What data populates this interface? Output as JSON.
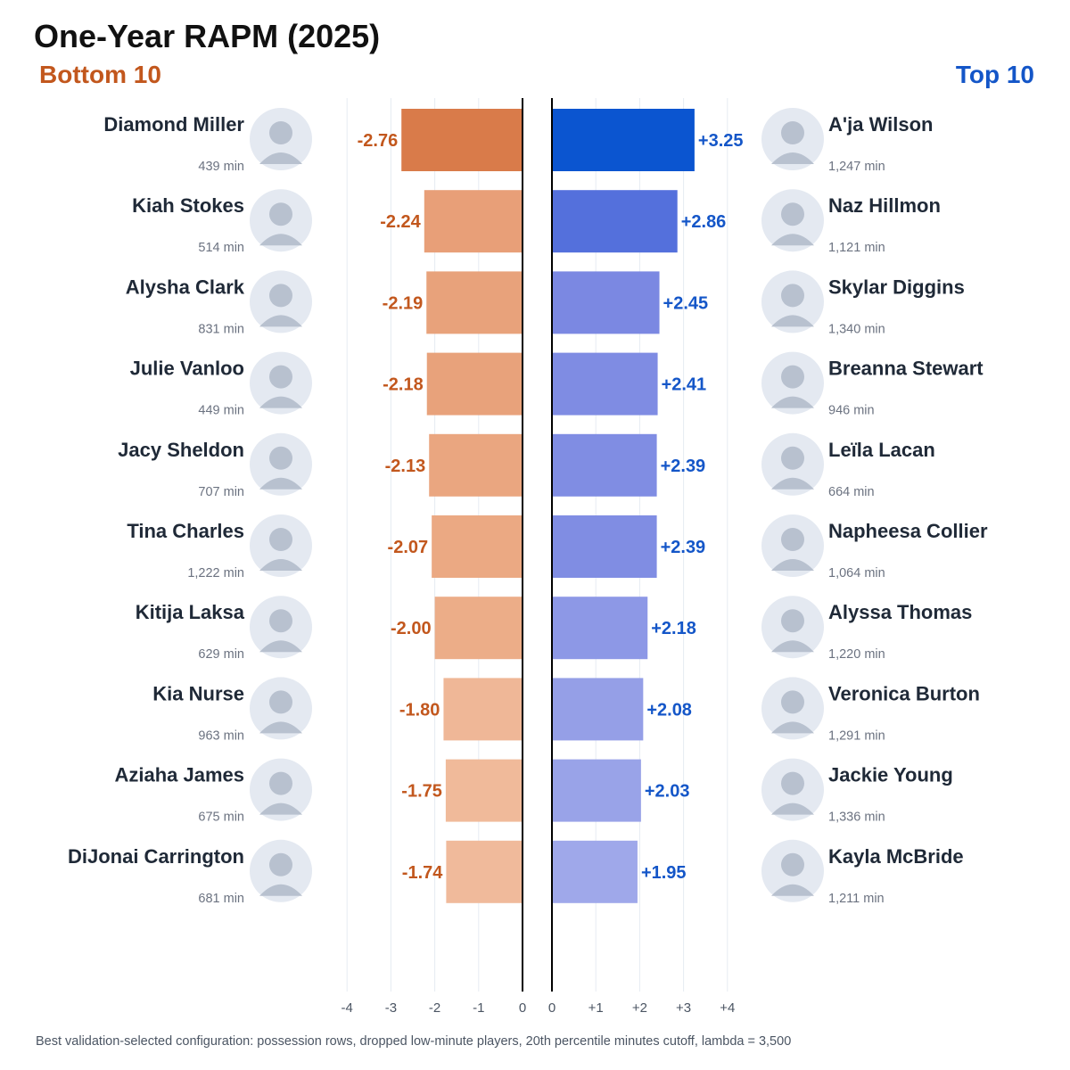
{
  "title": "One-Year RAPM (2025)",
  "bottom_heading": "Bottom 10",
  "top_heading": "Top 10",
  "footnote": "Best validation-selected configuration: possession rows, dropped low-minute players, 20th percentile minutes cutoff, lambda = 3,500",
  "colors": {
    "bottom_label": "#c2571d",
    "top_label": "#1456c8",
    "avatar_bg": "#e4e9f1"
  },
  "chart_data": [
    {
      "type": "bar",
      "panel": "Bottom 10",
      "orientation": "horizontal",
      "players": [
        "Diamond Miller",
        "Kiah Stokes",
        "Alysha Clark",
        "Julie Vanloo",
        "Jacy Sheldon",
        "Tina Charles",
        "Kitija Laksa",
        "Kia Nurse",
        "Aziaha James",
        "DiJonai Carrington"
      ],
      "minutes": [
        "439 min",
        "514 min",
        "831 min",
        "449 min",
        "707 min",
        "1,222 min",
        "629 min",
        "963 min",
        "675 min",
        "681 min"
      ],
      "values": [
        -2.76,
        -2.24,
        -2.19,
        -2.18,
        -2.13,
        -2.07,
        -2.0,
        -1.8,
        -1.75,
        -1.74
      ],
      "value_labels": [
        "-2.76",
        "-2.24",
        "-2.19",
        "-2.18",
        "-2.13",
        "-2.07",
        "-2.00",
        "-1.80",
        "-1.75",
        "-1.74"
      ],
      "colors": [
        "#d97b4a",
        "#e89f78",
        "#e8a27b",
        "#e8a27b",
        "#eaa680",
        "#eba983",
        "#ecad88",
        "#efb797",
        "#f0ba9a",
        "#f0ba9b"
      ],
      "xlim": [
        -4,
        0
      ],
      "xticks": [
        "-4",
        "-3",
        "-2",
        "-1",
        "0"
      ],
      "grid": true
    },
    {
      "type": "bar",
      "panel": "Top 10",
      "orientation": "horizontal",
      "players": [
        "A'ja Wilson",
        "Naz Hillmon",
        "Skylar Diggins",
        "Breanna Stewart",
        "Leïla Lacan",
        "Napheesa Collier",
        "Alyssa Thomas",
        "Veronica Burton",
        "Jackie Young",
        "Kayla McBride"
      ],
      "minutes": [
        "1,247 min",
        "1,121 min",
        "1,340 min",
        "946 min",
        "664 min",
        "1,064 min",
        "1,220 min",
        "1,291 min",
        "1,336 min",
        "1,211 min"
      ],
      "values": [
        3.25,
        2.86,
        2.45,
        2.41,
        2.39,
        2.39,
        2.18,
        2.08,
        2.03,
        1.95
      ],
      "value_labels": [
        "+3.25",
        "+2.86",
        "+2.45",
        "+2.41",
        "+2.39",
        "+2.39",
        "+2.18",
        "+2.08",
        "+2.03",
        "+1.95"
      ],
      "colors": [
        "#0b55d0",
        "#5470dc",
        "#7b88e2",
        "#7f8ce3",
        "#808de3",
        "#808de3",
        "#8d98e6",
        "#959fe7",
        "#99a3e8",
        "#9fa8ea"
      ],
      "xlim": [
        0,
        4
      ],
      "xticks": [
        "0",
        "+1",
        "+2",
        "+3",
        "+4"
      ],
      "grid": true
    }
  ]
}
